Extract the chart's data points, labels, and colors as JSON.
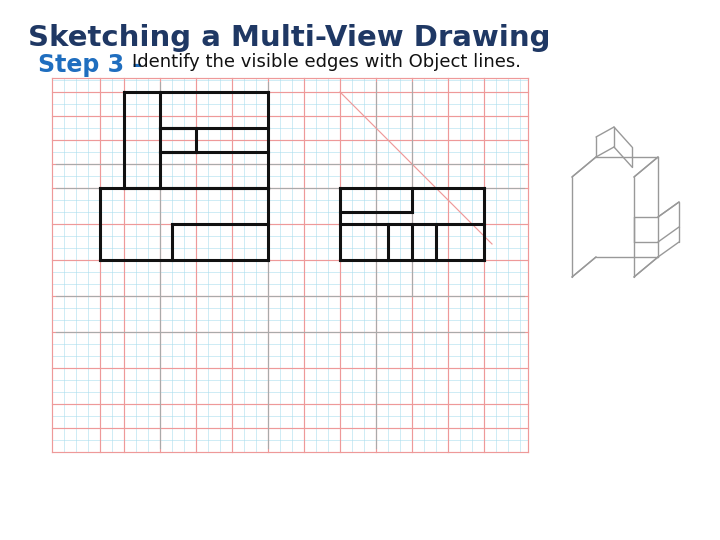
{
  "title": "Sketching a Multi-View Drawing",
  "title_color": "#1F3864",
  "title_fontsize": 21,
  "step_label": "Step 3 - ",
  "step_color": "#1F6EBF",
  "step_fontsize": 17,
  "step_desc": "Identify the visible edges with Object lines.",
  "step_desc_color": "#111111",
  "step_desc_fontsize": 13,
  "bg_color": "#FFFFFF",
  "grid_color": "#AADDEE",
  "red_color": "#EE9999",
  "gray_color": "#AAAAAA",
  "obj_color": "#111111",
  "obj_lw": 2.2,
  "iso_color": "#999999",
  "iso_lw": 1.0,
  "DL": 52,
  "DR": 528,
  "DB": 88,
  "DT": 462,
  "grid_step": 12
}
